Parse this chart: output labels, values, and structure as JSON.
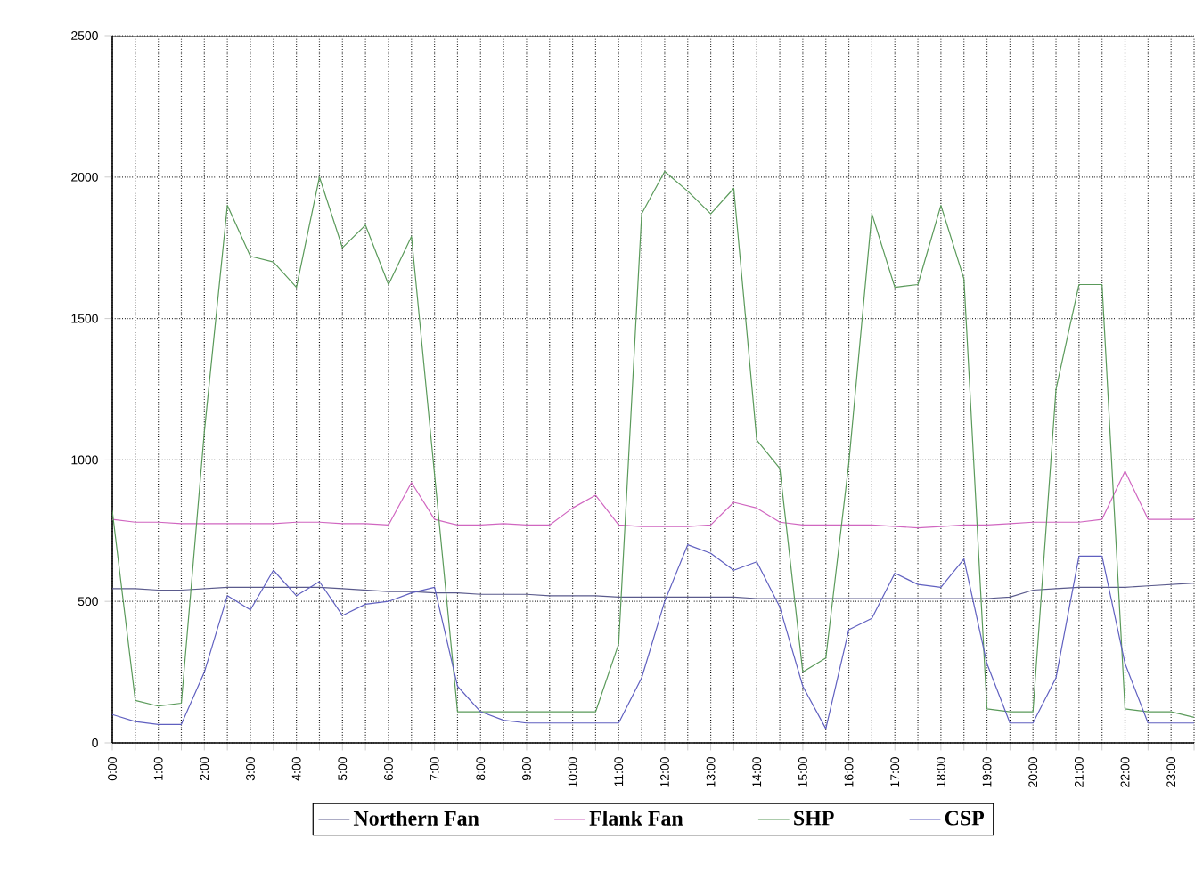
{
  "chart_data": {
    "type": "line",
    "x": [
      0,
      0.5,
      1,
      1.5,
      2,
      2.5,
      3,
      3.5,
      4,
      4.5,
      5,
      5.5,
      6,
      6.5,
      7,
      7.5,
      8,
      8.5,
      9,
      9.5,
      10,
      10.5,
      11,
      11.5,
      12,
      12.5,
      13,
      13.5,
      14,
      14.5,
      15,
      15.5,
      16,
      16.5,
      17,
      17.5,
      18,
      18.5,
      19,
      19.5,
      20,
      20.5,
      21,
      21.5,
      22,
      22.5,
      23,
      23.5
    ],
    "series": [
      {
        "name": "Northern Fan",
        "color": "#5a5a8c",
        "values": [
          545,
          545,
          540,
          540,
          545,
          550,
          550,
          550,
          550,
          550,
          545,
          540,
          535,
          535,
          530,
          530,
          525,
          525,
          525,
          520,
          520,
          520,
          515,
          515,
          515,
          515,
          515,
          515,
          510,
          510,
          510,
          510,
          510,
          510,
          510,
          510,
          510,
          510,
          510,
          515,
          540,
          545,
          550,
          550,
          550,
          555,
          560,
          565
        ]
      },
      {
        "name": "Flank Fan",
        "color": "#d066c0",
        "values": [
          790,
          780,
          780,
          775,
          775,
          775,
          775,
          775,
          780,
          780,
          775,
          775,
          770,
          920,
          790,
          770,
          770,
          775,
          770,
          770,
          830,
          875,
          770,
          765,
          765,
          765,
          770,
          850,
          830,
          780,
          770,
          770,
          770,
          770,
          765,
          760,
          765,
          770,
          770,
          775,
          780,
          780,
          780,
          790,
          960,
          790,
          790,
          790
        ]
      },
      {
        "name": "SHP",
        "color": "#5a9a5a",
        "values": [
          820,
          150,
          130,
          140,
          1100,
          1900,
          1720,
          1700,
          1610,
          2000,
          1750,
          1830,
          1620,
          1790,
          950,
          110,
          110,
          110,
          110,
          110,
          110,
          110,
          350,
          1870,
          2020,
          1950,
          1870,
          1960,
          1070,
          970,
          250,
          300,
          990,
          1870,
          1610,
          1620,
          1900,
          1640,
          120,
          110,
          110,
          1250,
          1620,
          1620,
          120,
          110,
          110,
          90
        ]
      },
      {
        "name": "CSP",
        "color": "#6060c0",
        "values": [
          100,
          75,
          65,
          65,
          250,
          520,
          470,
          610,
          520,
          570,
          450,
          490,
          500,
          530,
          550,
          200,
          110,
          80,
          70,
          70,
          70,
          70,
          70,
          230,
          500,
          700,
          670,
          610,
          640,
          480,
          200,
          50,
          400,
          440,
          600,
          560,
          550,
          650,
          280,
          70,
          70,
          230,
          660,
          660,
          280,
          70,
          70,
          70
        ]
      }
    ],
    "xlim": [
      0,
      23.5
    ],
    "ylim": [
      0,
      2500
    ],
    "yticks": [
      0,
      500,
      1000,
      1500,
      2000,
      2500
    ],
    "xticks": [
      {
        "value": 0,
        "label": "0:00"
      },
      {
        "value": 0.5,
        "label": null
      },
      {
        "value": 1,
        "label": "1:00"
      },
      {
        "value": 1.5,
        "label": null
      },
      {
        "value": 2,
        "label": "2:00"
      },
      {
        "value": 2.5,
        "label": null
      },
      {
        "value": 3,
        "label": "3:00"
      },
      {
        "value": 3.5,
        "label": null
      },
      {
        "value": 4,
        "label": "4:00"
      },
      {
        "value": 4.5,
        "label": null
      },
      {
        "value": 5,
        "label": "5:00"
      },
      {
        "value": 5.5,
        "label": null
      },
      {
        "value": 6,
        "label": "6:00"
      },
      {
        "value": 6.5,
        "label": null
      },
      {
        "value": 7,
        "label": "7:00"
      },
      {
        "value": 7.5,
        "label": null
      },
      {
        "value": 8,
        "label": "8:00"
      },
      {
        "value": 8.5,
        "label": null
      },
      {
        "value": 9,
        "label": "9:00"
      },
      {
        "value": 9.5,
        "label": null
      },
      {
        "value": 10,
        "label": "10:00"
      },
      {
        "value": 10.5,
        "label": null
      },
      {
        "value": 11,
        "label": "11:00"
      },
      {
        "value": 11.5,
        "label": null
      },
      {
        "value": 12,
        "label": "12:00"
      },
      {
        "value": 12.5,
        "label": null
      },
      {
        "value": 13,
        "label": "13:00"
      },
      {
        "value": 13.5,
        "label": null
      },
      {
        "value": 14,
        "label": "14:00"
      },
      {
        "value": 14.5,
        "label": null
      },
      {
        "value": 15,
        "label": "15:00"
      },
      {
        "value": 15.5,
        "label": null
      },
      {
        "value": 16,
        "label": "16:00"
      },
      {
        "value": 16.5,
        "label": null
      },
      {
        "value": 17,
        "label": "17:00"
      },
      {
        "value": 17.5,
        "label": null
      },
      {
        "value": 18,
        "label": "18:00"
      },
      {
        "value": 18.5,
        "label": null
      },
      {
        "value": 19,
        "label": "19:00"
      },
      {
        "value": 19.5,
        "label": null
      },
      {
        "value": 20,
        "label": "20:00"
      },
      {
        "value": 20.5,
        "label": null
      },
      {
        "value": 21,
        "label": "21:00"
      },
      {
        "value": 21.5,
        "label": null
      },
      {
        "value": 22,
        "label": "22:00"
      },
      {
        "value": 22.5,
        "label": null
      },
      {
        "value": 23,
        "label": "23:00"
      },
      {
        "value": 23.5,
        "label": null
      }
    ],
    "grid": true,
    "legend": "bottom",
    "marker": "none",
    "line_style": "solid"
  }
}
